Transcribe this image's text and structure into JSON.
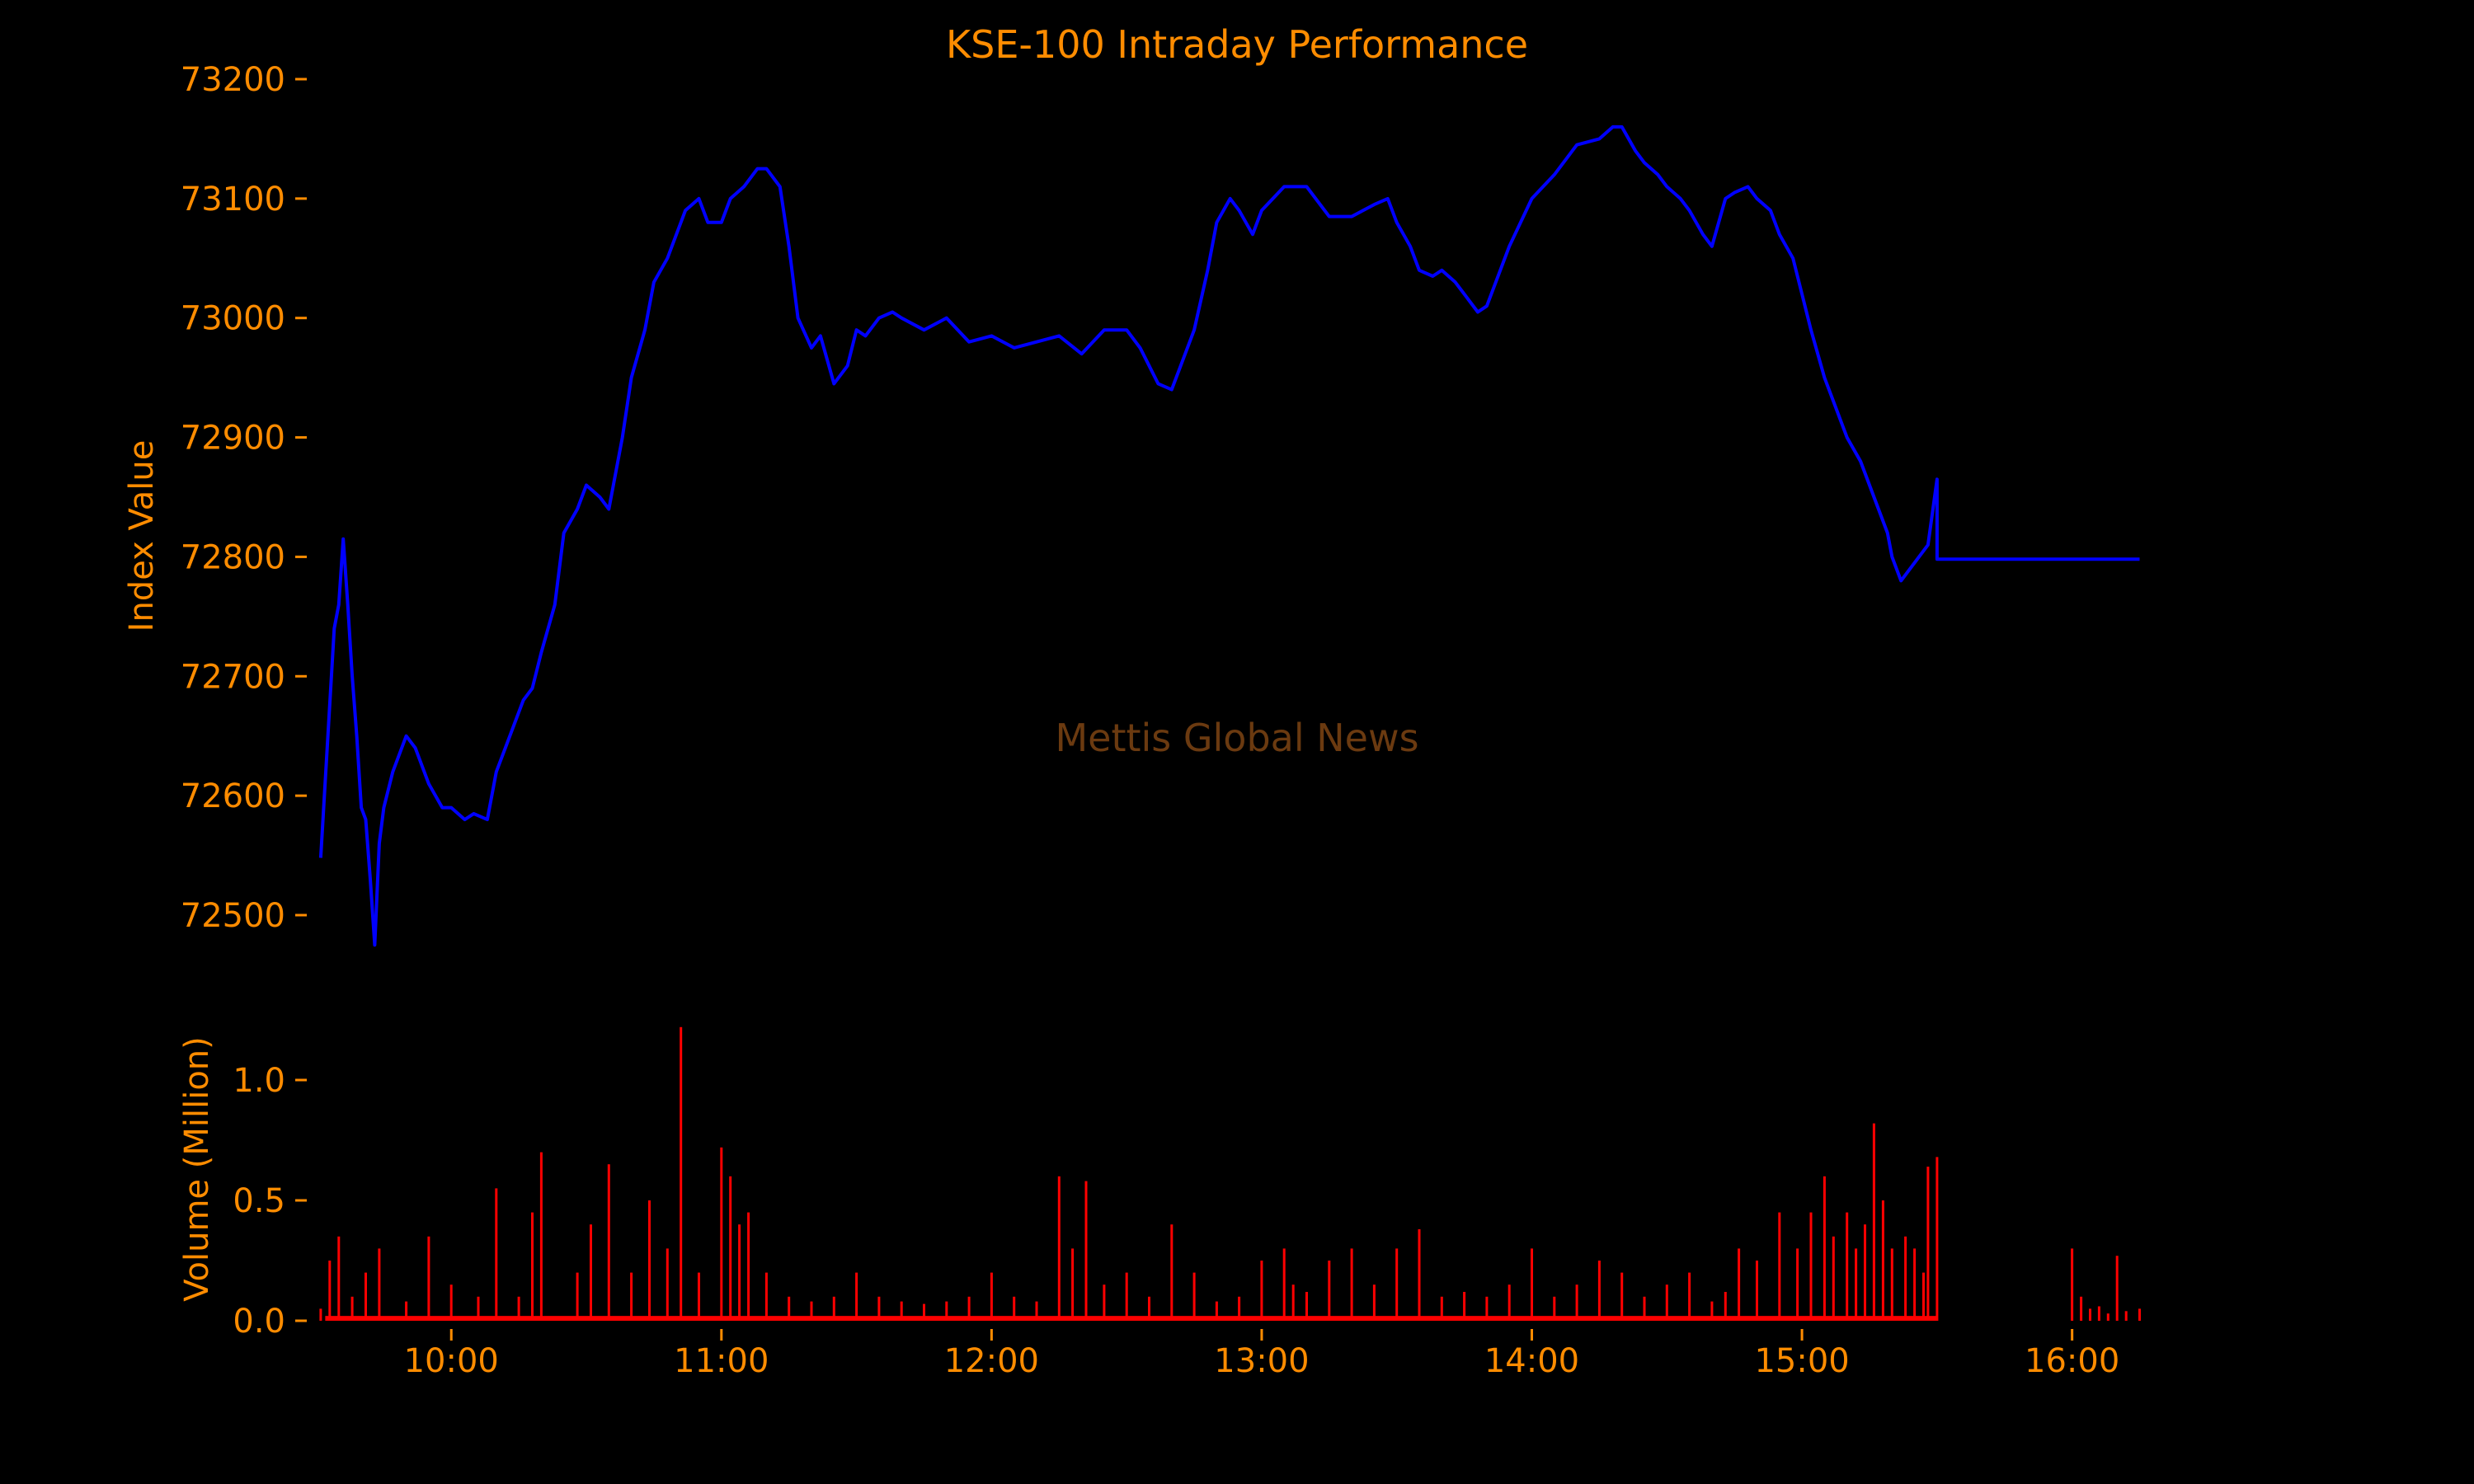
{
  "colors": {
    "background": "#000000",
    "text": "#ff8c00",
    "index_line": "#0000ff",
    "volume_bars": "#ff0000",
    "watermark": "#6b3a10"
  },
  "watermark": "Mettis Global News",
  "chart_data": [
    {
      "type": "line",
      "title": "KSE-100 Intraday Performance",
      "xlabel": "",
      "ylabel": "Index Value",
      "xlim": [
        "09:29",
        "16:16"
      ],
      "ylim": [
        72460,
        73210
      ],
      "yticks": [
        72500,
        72600,
        72700,
        72800,
        72900,
        73000,
        73100,
        73200
      ],
      "grid": false,
      "series": [
        {
          "name": "",
          "x": [
            "09:31",
            "09:34",
            "09:35",
            "09:36",
            "09:37",
            "09:38",
            "09:39",
            "09:40",
            "09:41",
            "09:42",
            "09:43",
            "09:44",
            "09:45",
            "09:47",
            "09:50",
            "09:52",
            "09:55",
            "09:58",
            "10:00",
            "10:03",
            "10:05",
            "10:08",
            "10:10",
            "10:12",
            "10:14",
            "10:16",
            "10:18",
            "10:20",
            "10:23",
            "10:25",
            "10:28",
            "10:30",
            "10:33",
            "10:35",
            "10:38",
            "10:40",
            "10:43",
            "10:45",
            "10:48",
            "10:50",
            "10:52",
            "10:55",
            "10:57",
            "11:00",
            "11:02",
            "11:05",
            "11:08",
            "11:10",
            "11:13",
            "11:15",
            "11:17",
            "11:20",
            "11:22",
            "11:25",
            "11:28",
            "11:30",
            "11:32",
            "11:35",
            "11:38",
            "11:40",
            "11:45",
            "11:50",
            "11:55",
            "12:00",
            "12:05",
            "12:10",
            "12:15",
            "12:20",
            "12:25",
            "12:30",
            "12:33",
            "12:35",
            "12:37",
            "12:40",
            "12:42",
            "12:45",
            "12:48",
            "12:50",
            "12:53",
            "12:55",
            "12:58",
            "13:00",
            "13:05",
            "13:10",
            "13:15",
            "13:20",
            "13:25",
            "13:28",
            "13:30",
            "13:33",
            "13:35",
            "13:38",
            "13:40",
            "13:43",
            "13:45",
            "13:48",
            "13:50",
            "13:55",
            "14:00",
            "14:05",
            "14:10",
            "14:15",
            "14:18",
            "14:20",
            "14:23",
            "14:25",
            "14:28",
            "14:30",
            "14:33",
            "14:35",
            "14:38",
            "14:40",
            "14:43",
            "14:45",
            "14:48",
            "14:50",
            "14:53",
            "14:55",
            "14:58",
            "15:00",
            "15:02",
            "15:05",
            "15:08",
            "15:10",
            "15:13",
            "15:15",
            "15:17",
            "15:19",
            "15:20",
            "15:22",
            "15:24",
            "15:26",
            "15:28",
            "15:30",
            "15:30",
            "15:35",
            "15:45",
            "16:00",
            "16:10",
            "16:15"
          ],
          "y": [
            72548,
            72740,
            72760,
            72815,
            72760,
            72700,
            72650,
            72590,
            72580,
            72530,
            72475,
            72560,
            72590,
            72620,
            72650,
            72640,
            72610,
            72590,
            72590,
            72580,
            72585,
            72580,
            72620,
            72640,
            72660,
            72680,
            72690,
            72720,
            72760,
            72820,
            72840,
            72860,
            72850,
            72840,
            72900,
            72950,
            72990,
            73030,
            73050,
            73070,
            73090,
            73100,
            73080,
            73080,
            73100,
            73110,
            73125,
            73125,
            73110,
            73060,
            73000,
            72975,
            72985,
            72945,
            72960,
            72990,
            72985,
            73000,
            73005,
            73000,
            72990,
            73000,
            72980,
            72985,
            72975,
            72980,
            72985,
            72970,
            72990,
            72990,
            72975,
            72960,
            72945,
            72940,
            72960,
            72990,
            73040,
            73080,
            73100,
            73090,
            73070,
            73090,
            73110,
            73110,
            73085,
            73085,
            73095,
            73100,
            73080,
            73060,
            73040,
            73035,
            73040,
            73030,
            73020,
            73005,
            73010,
            73060,
            73100,
            73120,
            73145,
            73150,
            73160,
            73160,
            73140,
            73130,
            73120,
            73110,
            73100,
            73090,
            73070,
            73060,
            73100,
            73105,
            73110,
            73100,
            73090,
            73070,
            73050,
            73020,
            72990,
            72950,
            72920,
            72900,
            72880,
            72860,
            72840,
            72820,
            72800,
            72780,
            72790,
            72800,
            72810,
            72865,
            72798,
            72798,
            72798,
            72798,
            72798,
            72798
          ]
        }
      ]
    },
    {
      "type": "bar",
      "title": "",
      "xlabel": "",
      "ylabel": "Volume (Million)",
      "xlim": [
        "09:29",
        "16:16"
      ],
      "ylim": [
        0,
        1.25
      ],
      "yticks": [
        0.0,
        0.5,
        1.0
      ],
      "ytick_labels": [
        "0.0",
        "0.5",
        "1.0"
      ],
      "xticks": [
        "10:00",
        "11:00",
        "12:00",
        "13:00",
        "14:00",
        "15:00",
        "16:00"
      ],
      "grid": false,
      "series": [
        {
          "name": "",
          "x": [
            "09:31",
            "09:33",
            "09:35",
            "09:38",
            "09:41",
            "09:44",
            "09:50",
            "09:55",
            "10:00",
            "10:06",
            "10:10",
            "10:15",
            "10:18",
            "10:20",
            "10:28",
            "10:31",
            "10:35",
            "10:40",
            "10:44",
            "10:48",
            "10:51",
            "10:55",
            "11:00",
            "11:02",
            "11:04",
            "11:06",
            "11:10",
            "11:15",
            "11:20",
            "11:25",
            "11:30",
            "11:35",
            "11:40",
            "11:45",
            "11:50",
            "11:55",
            "12:00",
            "12:05",
            "12:10",
            "12:15",
            "12:18",
            "12:21",
            "12:25",
            "12:30",
            "12:35",
            "12:40",
            "12:45",
            "12:50",
            "12:55",
            "13:00",
            "13:05",
            "13:07",
            "13:10",
            "13:15",
            "13:20",
            "13:25",
            "13:30",
            "13:35",
            "13:40",
            "13:45",
            "13:50",
            "13:55",
            "14:00",
            "14:05",
            "14:10",
            "14:15",
            "14:20",
            "14:25",
            "14:30",
            "14:35",
            "14:40",
            "14:43",
            "14:46",
            "14:50",
            "14:55",
            "14:59",
            "15:02",
            "15:05",
            "15:07",
            "15:10",
            "15:12",
            "15:14",
            "15:16",
            "15:18",
            "15:20",
            "15:23",
            "15:25",
            "15:27",
            "15:28",
            "15:30",
            "16:00",
            "16:02",
            "16:04",
            "16:06",
            "16:08",
            "16:10",
            "16:12",
            "16:15"
          ],
          "values": [
            0.05,
            0.25,
            0.35,
            0.1,
            0.2,
            0.3,
            0.08,
            0.35,
            0.15,
            0.1,
            0.55,
            0.1,
            0.45,
            0.7,
            0.2,
            0.4,
            0.65,
            0.2,
            0.5,
            0.3,
            1.22,
            0.2,
            0.72,
            0.6,
            0.4,
            0.45,
            0.2,
            0.1,
            0.08,
            0.1,
            0.2,
            0.1,
            0.08,
            0.07,
            0.08,
            0.1,
            0.2,
            0.1,
            0.08,
            0.6,
            0.3,
            0.58,
            0.15,
            0.2,
            0.1,
            0.4,
            0.2,
            0.08,
            0.1,
            0.25,
            0.3,
            0.15,
            0.12,
            0.25,
            0.3,
            0.15,
            0.3,
            0.38,
            0.1,
            0.12,
            0.1,
            0.15,
            0.3,
            0.1,
            0.15,
            0.25,
            0.2,
            0.1,
            0.15,
            0.2,
            0.08,
            0.12,
            0.3,
            0.25,
            0.45,
            0.3,
            0.45,
            0.6,
            0.35,
            0.45,
            0.3,
            0.4,
            0.82,
            0.5,
            0.3,
            0.35,
            0.3,
            0.2,
            0.64,
            0.68,
            0.3,
            0.1,
            0.05,
            0.06,
            0.03,
            0.27,
            0.04,
            0.05
          ]
        }
      ]
    }
  ]
}
